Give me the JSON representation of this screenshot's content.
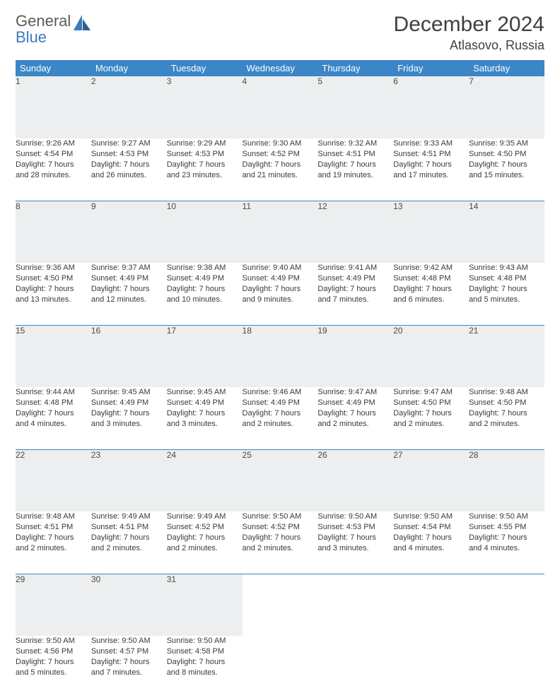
{
  "logo": {
    "line1": "General",
    "line2": "Blue"
  },
  "title": "December 2024",
  "location": "Atlasovo, Russia",
  "colors": {
    "header_bg": "#3b86c7",
    "header_text": "#ffffff",
    "daynum_bg": "#eceeef",
    "rule": "#3b86c7",
    "text": "#3a3a3a",
    "logo_gray": "#5a5a5a",
    "logo_blue": "#3b7bbf"
  },
  "weekdays": [
    "Sunday",
    "Monday",
    "Tuesday",
    "Wednesday",
    "Thursday",
    "Friday",
    "Saturday"
  ],
  "weeks": [
    [
      {
        "n": "1",
        "sr": "Sunrise: 9:26 AM",
        "ss": "Sunset: 4:54 PM",
        "d1": "Daylight: 7 hours",
        "d2": "and 28 minutes."
      },
      {
        "n": "2",
        "sr": "Sunrise: 9:27 AM",
        "ss": "Sunset: 4:53 PM",
        "d1": "Daylight: 7 hours",
        "d2": "and 26 minutes."
      },
      {
        "n": "3",
        "sr": "Sunrise: 9:29 AM",
        "ss": "Sunset: 4:53 PM",
        "d1": "Daylight: 7 hours",
        "d2": "and 23 minutes."
      },
      {
        "n": "4",
        "sr": "Sunrise: 9:30 AM",
        "ss": "Sunset: 4:52 PM",
        "d1": "Daylight: 7 hours",
        "d2": "and 21 minutes."
      },
      {
        "n": "5",
        "sr": "Sunrise: 9:32 AM",
        "ss": "Sunset: 4:51 PM",
        "d1": "Daylight: 7 hours",
        "d2": "and 19 minutes."
      },
      {
        "n": "6",
        "sr": "Sunrise: 9:33 AM",
        "ss": "Sunset: 4:51 PM",
        "d1": "Daylight: 7 hours",
        "d2": "and 17 minutes."
      },
      {
        "n": "7",
        "sr": "Sunrise: 9:35 AM",
        "ss": "Sunset: 4:50 PM",
        "d1": "Daylight: 7 hours",
        "d2": "and 15 minutes."
      }
    ],
    [
      {
        "n": "8",
        "sr": "Sunrise: 9:36 AM",
        "ss": "Sunset: 4:50 PM",
        "d1": "Daylight: 7 hours",
        "d2": "and 13 minutes."
      },
      {
        "n": "9",
        "sr": "Sunrise: 9:37 AM",
        "ss": "Sunset: 4:49 PM",
        "d1": "Daylight: 7 hours",
        "d2": "and 12 minutes."
      },
      {
        "n": "10",
        "sr": "Sunrise: 9:38 AM",
        "ss": "Sunset: 4:49 PM",
        "d1": "Daylight: 7 hours",
        "d2": "and 10 minutes."
      },
      {
        "n": "11",
        "sr": "Sunrise: 9:40 AM",
        "ss": "Sunset: 4:49 PM",
        "d1": "Daylight: 7 hours",
        "d2": "and 9 minutes."
      },
      {
        "n": "12",
        "sr": "Sunrise: 9:41 AM",
        "ss": "Sunset: 4:49 PM",
        "d1": "Daylight: 7 hours",
        "d2": "and 7 minutes."
      },
      {
        "n": "13",
        "sr": "Sunrise: 9:42 AM",
        "ss": "Sunset: 4:48 PM",
        "d1": "Daylight: 7 hours",
        "d2": "and 6 minutes."
      },
      {
        "n": "14",
        "sr": "Sunrise: 9:43 AM",
        "ss": "Sunset: 4:48 PM",
        "d1": "Daylight: 7 hours",
        "d2": "and 5 minutes."
      }
    ],
    [
      {
        "n": "15",
        "sr": "Sunrise: 9:44 AM",
        "ss": "Sunset: 4:48 PM",
        "d1": "Daylight: 7 hours",
        "d2": "and 4 minutes."
      },
      {
        "n": "16",
        "sr": "Sunrise: 9:45 AM",
        "ss": "Sunset: 4:49 PM",
        "d1": "Daylight: 7 hours",
        "d2": "and 3 minutes."
      },
      {
        "n": "17",
        "sr": "Sunrise: 9:45 AM",
        "ss": "Sunset: 4:49 PM",
        "d1": "Daylight: 7 hours",
        "d2": "and 3 minutes."
      },
      {
        "n": "18",
        "sr": "Sunrise: 9:46 AM",
        "ss": "Sunset: 4:49 PM",
        "d1": "Daylight: 7 hours",
        "d2": "and 2 minutes."
      },
      {
        "n": "19",
        "sr": "Sunrise: 9:47 AM",
        "ss": "Sunset: 4:49 PM",
        "d1": "Daylight: 7 hours",
        "d2": "and 2 minutes."
      },
      {
        "n": "20",
        "sr": "Sunrise: 9:47 AM",
        "ss": "Sunset: 4:50 PM",
        "d1": "Daylight: 7 hours",
        "d2": "and 2 minutes."
      },
      {
        "n": "21",
        "sr": "Sunrise: 9:48 AM",
        "ss": "Sunset: 4:50 PM",
        "d1": "Daylight: 7 hours",
        "d2": "and 2 minutes."
      }
    ],
    [
      {
        "n": "22",
        "sr": "Sunrise: 9:48 AM",
        "ss": "Sunset: 4:51 PM",
        "d1": "Daylight: 7 hours",
        "d2": "and 2 minutes."
      },
      {
        "n": "23",
        "sr": "Sunrise: 9:49 AM",
        "ss": "Sunset: 4:51 PM",
        "d1": "Daylight: 7 hours",
        "d2": "and 2 minutes."
      },
      {
        "n": "24",
        "sr": "Sunrise: 9:49 AM",
        "ss": "Sunset: 4:52 PM",
        "d1": "Daylight: 7 hours",
        "d2": "and 2 minutes."
      },
      {
        "n": "25",
        "sr": "Sunrise: 9:50 AM",
        "ss": "Sunset: 4:52 PM",
        "d1": "Daylight: 7 hours",
        "d2": "and 2 minutes."
      },
      {
        "n": "26",
        "sr": "Sunrise: 9:50 AM",
        "ss": "Sunset: 4:53 PM",
        "d1": "Daylight: 7 hours",
        "d2": "and 3 minutes."
      },
      {
        "n": "27",
        "sr": "Sunrise: 9:50 AM",
        "ss": "Sunset: 4:54 PM",
        "d1": "Daylight: 7 hours",
        "d2": "and 4 minutes."
      },
      {
        "n": "28",
        "sr": "Sunrise: 9:50 AM",
        "ss": "Sunset: 4:55 PM",
        "d1": "Daylight: 7 hours",
        "d2": "and 4 minutes."
      }
    ],
    [
      {
        "n": "29",
        "sr": "Sunrise: 9:50 AM",
        "ss": "Sunset: 4:56 PM",
        "d1": "Daylight: 7 hours",
        "d2": "and 5 minutes."
      },
      {
        "n": "30",
        "sr": "Sunrise: 9:50 AM",
        "ss": "Sunset: 4:57 PM",
        "d1": "Daylight: 7 hours",
        "d2": "and 7 minutes."
      },
      {
        "n": "31",
        "sr": "Sunrise: 9:50 AM",
        "ss": "Sunset: 4:58 PM",
        "d1": "Daylight: 7 hours",
        "d2": "and 8 minutes."
      },
      null,
      null,
      null,
      null
    ]
  ]
}
